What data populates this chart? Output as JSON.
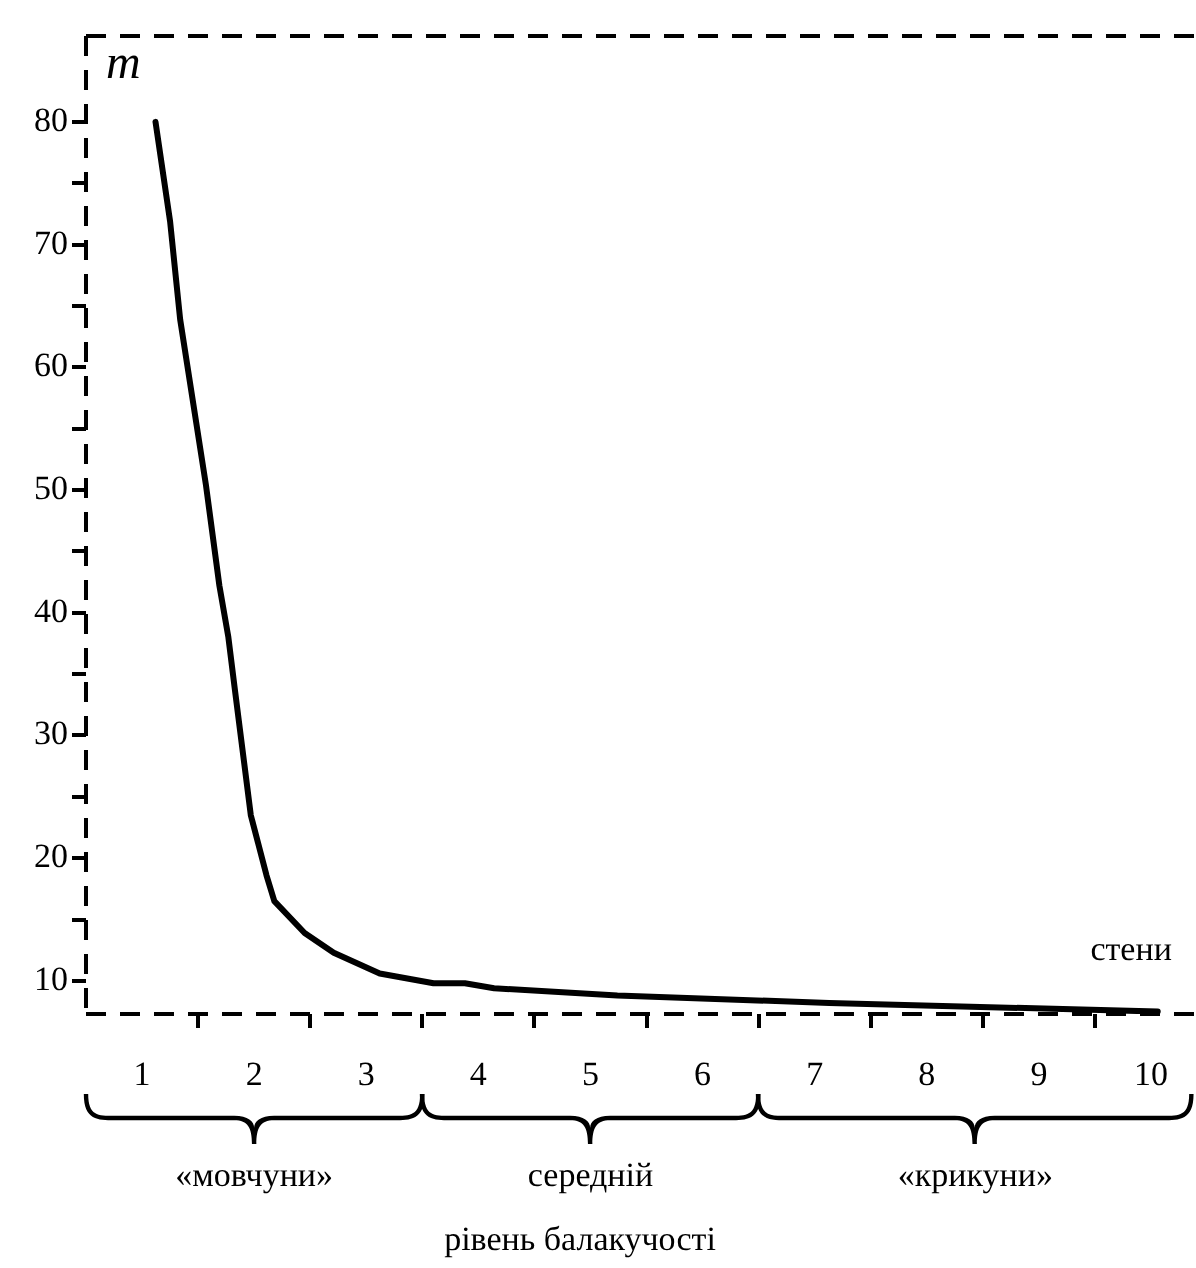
{
  "chart_data": {
    "type": "line",
    "ylabel": "m",
    "xlabel": "рівень балакучості",
    "annotations": [
      "стени",
      "«мовчуни»",
      "середній",
      "«крикуни»"
    ],
    "x": [
      1.12,
      1.25,
      1.34,
      1.57,
      1.69,
      1.77,
      1.83,
      1.97,
      2.11,
      2.18,
      2.45,
      2.71,
      3.12,
      3.6,
      3.88,
      4.14,
      5.24,
      7.13,
      10.06
    ],
    "series": [
      {
        "color": "#000000",
        "values": [
          80,
          71.9,
          63.9,
          50.4,
          42.2,
          38,
          33.6,
          23.5,
          18.6,
          16.5,
          13.9,
          12.3,
          10.6,
          9.8,
          9.8,
          9.4,
          8.8,
          8.2,
          7.5
        ]
      }
    ],
    "xlim": [
      0.5,
      10.4
    ],
    "xticks": [
      1,
      {
        "value": 1.5,
        "label": null
      },
      2,
      {
        "value": 2.5,
        "label": null
      },
      3,
      {
        "value": 3.5,
        "label": null
      },
      4,
      {
        "value": 4.5,
        "label": null
      },
      5,
      {
        "value": 5.5,
        "label": null
      },
      6,
      {
        "value": 6.5,
        "label": null
      },
      7,
      {
        "value": 7.5,
        "label": null
      },
      8,
      {
        "value": 8.5,
        "label": null
      },
      9,
      {
        "value": 9.5,
        "label": null
      },
      10
    ],
    "ylim": [
      7.3,
      87
    ],
    "yticks": [
      10,
      {
        "value": 15,
        "label": null
      },
      20,
      {
        "value": 25,
        "label": null
      },
      30,
      {
        "value": 35,
        "label": null
      },
      40,
      {
        "value": 45,
        "label": null
      },
      50,
      {
        "value": 55,
        "label": null
      },
      60,
      {
        "value": 65,
        "label": null
      },
      70,
      {
        "value": 75,
        "label": null
      },
      80
    ],
    "marker": "none",
    "line_style": "solid",
    "legend": false
  }
}
